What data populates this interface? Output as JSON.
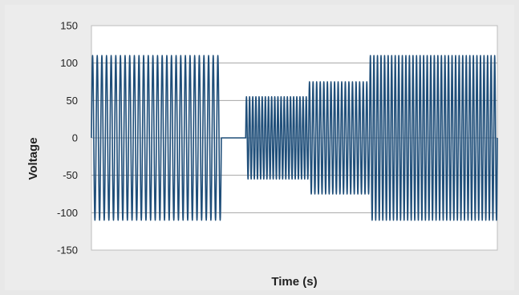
{
  "chart_data": {
    "type": "line",
    "title": "",
    "xlabel": "Time (s)",
    "ylabel": "Voltage",
    "ylim": [
      -150,
      150
    ],
    "yticks": [
      150,
      100,
      50,
      0,
      -50,
      -100,
      -150
    ],
    "grid": "horizontal",
    "x_tick_labels": false,
    "series": [
      {
        "color": "#1f4e79",
        "segments": [
          {
            "kind": "sine",
            "amplitude": 110,
            "cycles": 28,
            "x_start": 0.0,
            "x_end": 0.32
          },
          {
            "kind": "flat",
            "value": 0,
            "x_start": 0.32,
            "x_end": 0.38
          },
          {
            "kind": "sine",
            "amplitude": 55,
            "cycles": 20,
            "x_start": 0.38,
            "x_end": 0.535
          },
          {
            "kind": "sine",
            "amplitude": 75,
            "cycles": 17,
            "x_start": 0.535,
            "x_end": 0.685
          },
          {
            "kind": "sine",
            "amplitude": 110,
            "cycles": 36,
            "x_start": 0.685,
            "x_end": 1.0
          }
        ]
      }
    ]
  }
}
